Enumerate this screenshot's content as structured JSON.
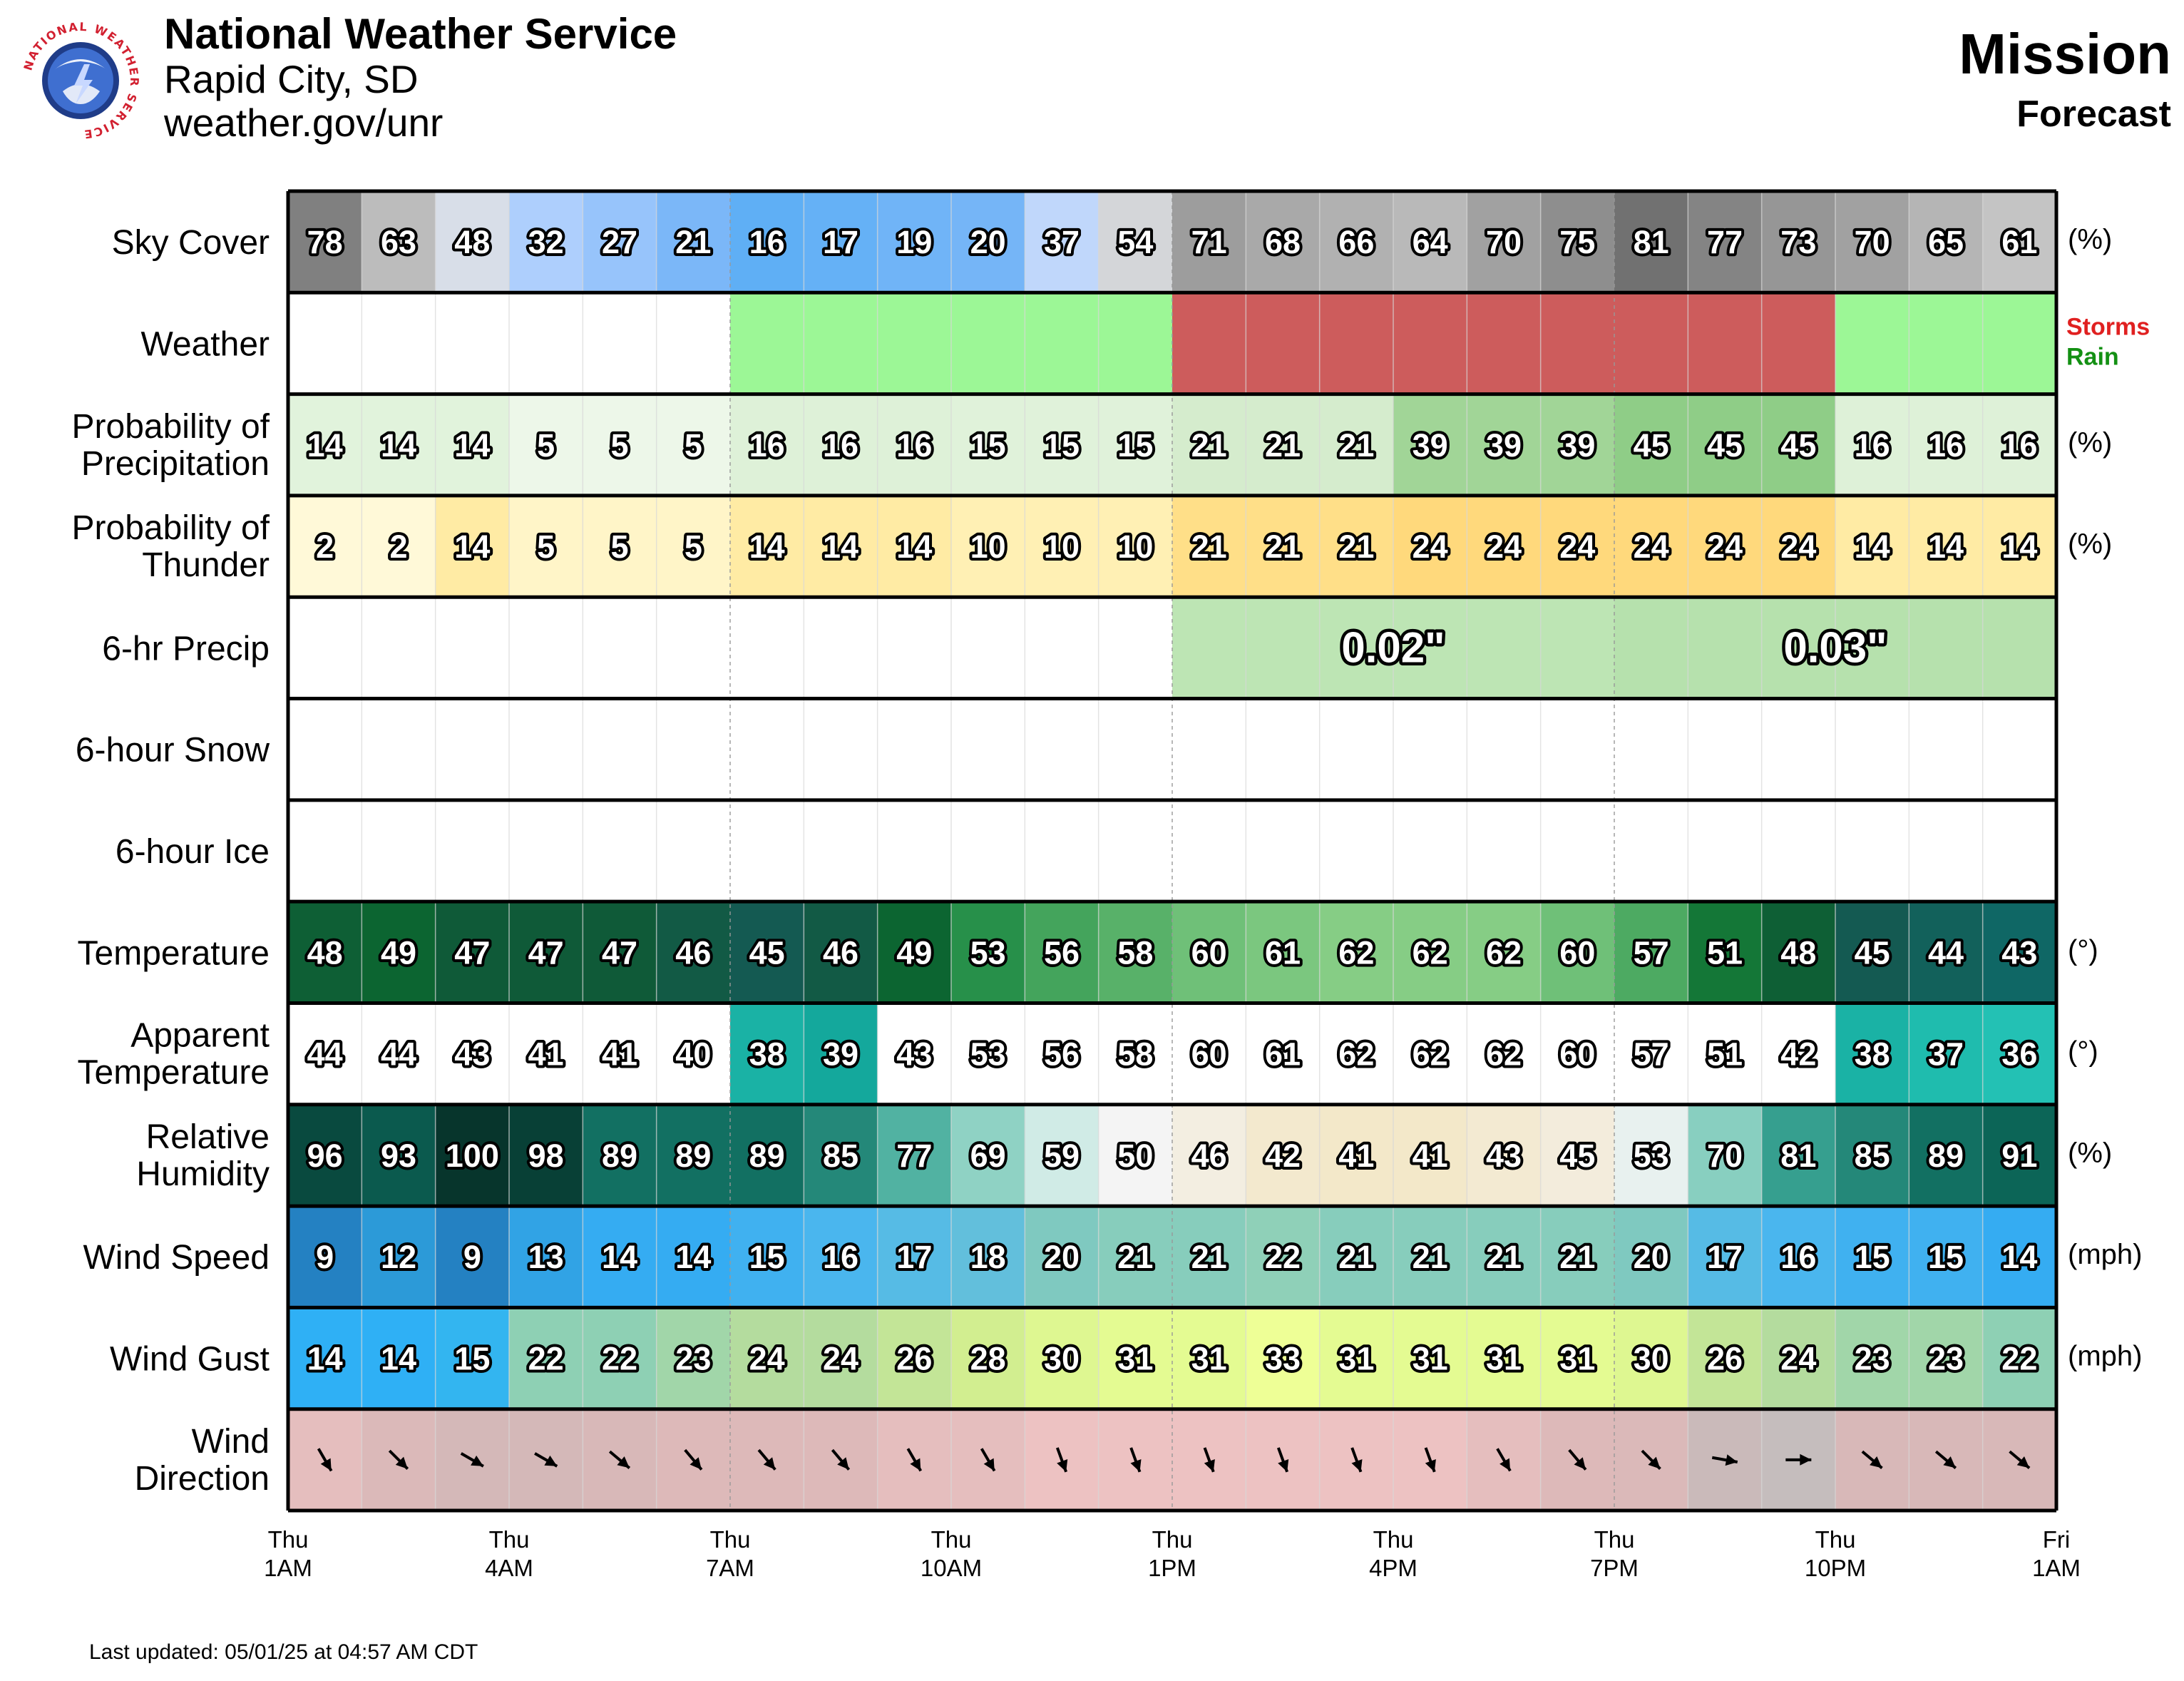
{
  "header": {
    "org": "National Weather Service",
    "office": "Rapid City, SD",
    "url": "weather.gov/unr",
    "logo_letters": "NATIONAL WEATHER SERVICE",
    "location": "Mission",
    "subtitle": "Forecast"
  },
  "updated": "Last updated: 05/01/25 at 04:57 AM CDT",
  "chart_data": {
    "type": "heatmap",
    "hours": [
      "1AM",
      "2AM",
      "3AM",
      "4AM",
      "5AM",
      "6AM",
      "7AM",
      "8AM",
      "9AM",
      "10AM",
      "11AM",
      "12PM",
      "1PM",
      "2PM",
      "3PM",
      "4PM",
      "5PM",
      "6PM",
      "7PM",
      "8PM",
      "9PM",
      "10PM",
      "11PM",
      "12AM"
    ],
    "time_labels": [
      {
        "day": "Thu",
        "hour": "1AM",
        "index": 0
      },
      {
        "day": "Thu",
        "hour": "4AM",
        "index": 3
      },
      {
        "day": "Thu",
        "hour": "7AM",
        "index": 6
      },
      {
        "day": "Thu",
        "hour": "10AM",
        "index": 9
      },
      {
        "day": "Thu",
        "hour": "1PM",
        "index": 12
      },
      {
        "day": "Thu",
        "hour": "4PM",
        "index": 15
      },
      {
        "day": "Thu",
        "hour": "7PM",
        "index": 18
      },
      {
        "day": "Thu",
        "hour": "10PM",
        "index": 21
      },
      {
        "day": "Fri",
        "hour": "1AM",
        "index": 24
      }
    ],
    "rows": [
      {
        "key": "sky",
        "label": [
          "Sky Cover"
        ],
        "unit": "(%)",
        "values": [
          78,
          63,
          48,
          32,
          27,
          21,
          16,
          17,
          19,
          20,
          37,
          54,
          71,
          68,
          66,
          64,
          70,
          75,
          81,
          77,
          73,
          70,
          65,
          61
        ]
      },
      {
        "key": "weather",
        "label": [
          "Weather"
        ],
        "values": [
          "",
          "",
          "",
          "",
          "",
          "",
          "Rain",
          "Rain",
          "Rain",
          "Rain",
          "Rain",
          "Rain",
          "Storms",
          "Storms",
          "Storms",
          "Storms",
          "Storms",
          "Storms",
          "Storms",
          "Storms",
          "Storms",
          "Rain",
          "Rain",
          "Rain"
        ],
        "legend": [
          {
            "name": "Storms",
            "color": "#e02020"
          },
          {
            "name": "Rain",
            "color": "#139013"
          }
        ]
      },
      {
        "key": "pop",
        "label": [
          "Probability of",
          "Precipitation"
        ],
        "unit": "(%)",
        "values": [
          14,
          14,
          14,
          5,
          5,
          5,
          16,
          16,
          16,
          15,
          15,
          15,
          21,
          21,
          21,
          39,
          39,
          39,
          45,
          45,
          45,
          16,
          16,
          16
        ]
      },
      {
        "key": "thunder",
        "label": [
          "Probability of",
          "Thunder"
        ],
        "unit": "(%)",
        "values": [
          2,
          2,
          14,
          5,
          5,
          5,
          14,
          14,
          14,
          10,
          10,
          10,
          21,
          21,
          21,
          24,
          24,
          24,
          24,
          24,
          24,
          14,
          14,
          14
        ]
      },
      {
        "key": "qpf",
        "label": [
          "6-hr Precip"
        ],
        "periods": [
          {
            "start": 12,
            "end": 18,
            "text": "0.02\""
          },
          {
            "start": 18,
            "end": 24,
            "text": "0.03\""
          }
        ]
      },
      {
        "key": "snow",
        "label": [
          "6-hour Snow"
        ],
        "periods": []
      },
      {
        "key": "ice",
        "label": [
          "6-hour Ice"
        ],
        "periods": []
      },
      {
        "key": "temp",
        "label": [
          "Temperature"
        ],
        "unit": "(°)",
        "values": [
          48,
          49,
          47,
          47,
          47,
          46,
          45,
          46,
          49,
          53,
          56,
          58,
          60,
          61,
          62,
          62,
          62,
          60,
          57,
          51,
          48,
          45,
          44,
          43
        ]
      },
      {
        "key": "apparent",
        "label": [
          "Apparent",
          "Temperature"
        ],
        "unit": "(°)",
        "values": [
          44,
          44,
          43,
          41,
          41,
          40,
          38,
          39,
          43,
          53,
          56,
          58,
          60,
          61,
          62,
          62,
          62,
          60,
          57,
          51,
          42,
          38,
          37,
          36
        ]
      },
      {
        "key": "rh",
        "label": [
          "Relative",
          "Humidity"
        ],
        "unit": "(%)",
        "values": [
          96,
          93,
          100,
          98,
          89,
          89,
          89,
          85,
          77,
          69,
          59,
          50,
          46,
          42,
          41,
          41,
          43,
          45,
          53,
          70,
          81,
          85,
          89,
          91
        ]
      },
      {
        "key": "wind",
        "label": [
          "Wind Speed"
        ],
        "unit": "(mph)",
        "values": [
          9,
          12,
          9,
          13,
          14,
          14,
          15,
          16,
          17,
          18,
          20,
          21,
          21,
          22,
          21,
          21,
          21,
          21,
          20,
          17,
          16,
          15,
          15,
          14
        ]
      },
      {
        "key": "gust",
        "label": [
          "Wind Gust"
        ],
        "unit": "(mph)",
        "values": [
          14,
          14,
          15,
          22,
          22,
          23,
          24,
          24,
          26,
          28,
          30,
          31,
          31,
          33,
          31,
          31,
          31,
          31,
          30,
          26,
          24,
          23,
          23,
          22
        ]
      },
      {
        "key": "dir",
        "label": [
          "Wind",
          "Direction"
        ],
        "values": [
          330,
          315,
          300,
          300,
          310,
          320,
          320,
          320,
          330,
          330,
          340,
          340,
          340,
          340,
          340,
          340,
          330,
          320,
          315,
          280,
          270,
          310,
          310,
          310
        ]
      }
    ]
  }
}
